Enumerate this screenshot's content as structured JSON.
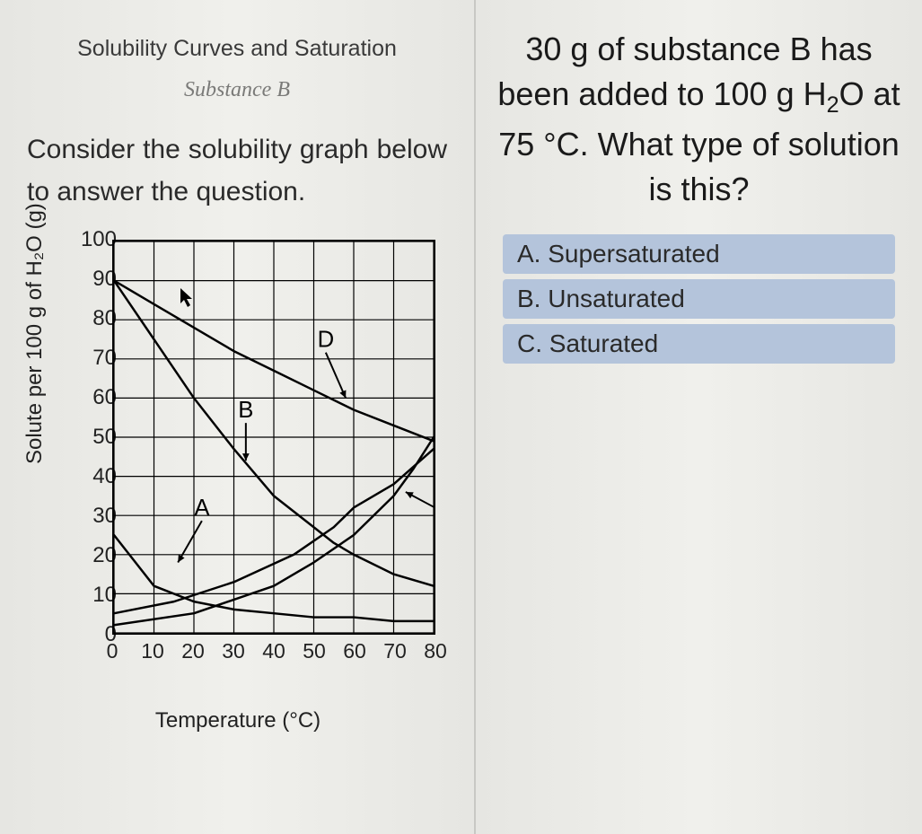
{
  "left": {
    "title": "Solubility Curves and Saturation",
    "subtitle": "Substance B",
    "body": "Consider the solubility graph below to answer the question."
  },
  "chart": {
    "ylabel": "Solute per 100 g of H₂O (g)",
    "xlabel": "Temperature (°C)",
    "xlim": [
      0,
      80
    ],
    "ylim": [
      0,
      100
    ],
    "ytick_step": 10,
    "xtick_step": 10,
    "yticks": [
      0,
      10,
      20,
      30,
      40,
      50,
      60,
      70,
      80,
      90,
      100
    ],
    "xticks": [
      0,
      10,
      20,
      30,
      40,
      50,
      60,
      70,
      80
    ],
    "grid_color": "#000000",
    "line_color": "#000000",
    "line_width": 2.5,
    "background_color": "#ededea",
    "curves": {
      "A": {
        "label": "A",
        "label_at": {
          "x": 22,
          "y": 30
        },
        "arrow_to": {
          "x": 16,
          "y": 18
        },
        "points": [
          [
            0,
            25
          ],
          [
            10,
            12
          ],
          [
            20,
            8
          ],
          [
            30,
            6
          ],
          [
            40,
            5
          ],
          [
            50,
            4
          ],
          [
            60,
            4
          ],
          [
            70,
            3
          ],
          [
            80,
            3
          ]
        ]
      },
      "B": {
        "label": "B",
        "label_at": {
          "x": 33,
          "y": 55
        },
        "arrow_to": {
          "x": 33,
          "y": 44
        },
        "points": [
          [
            0,
            90
          ],
          [
            10,
            75
          ],
          [
            20,
            60
          ],
          [
            30,
            47
          ],
          [
            40,
            35
          ],
          [
            50,
            27
          ],
          [
            55,
            23
          ],
          [
            60,
            20
          ],
          [
            70,
            15
          ],
          [
            80,
            12
          ]
        ]
      },
      "C": {
        "label": "",
        "points": [
          [
            0,
            5
          ],
          [
            15,
            8
          ],
          [
            30,
            13
          ],
          [
            45,
            20
          ],
          [
            55,
            27
          ],
          [
            60,
            32
          ],
          [
            70,
            38
          ],
          [
            80,
            47
          ]
        ]
      },
      "D": {
        "label": "D",
        "label_at": {
          "x": 53,
          "y": 73
        },
        "arrow_to": {
          "x": 58,
          "y": 60
        },
        "points": [
          [
            0,
            90
          ],
          [
            10,
            84
          ],
          [
            20,
            78
          ],
          [
            30,
            72
          ],
          [
            40,
            67
          ],
          [
            50,
            62
          ],
          [
            60,
            57
          ],
          [
            70,
            53
          ],
          [
            80,
            49
          ]
        ]
      },
      "E": {
        "label": "",
        "arrow_to": {
          "x": 73,
          "y": 36
        },
        "arrow_from": {
          "x": 84,
          "y": 30
        },
        "points": [
          [
            0,
            2
          ],
          [
            20,
            5
          ],
          [
            40,
            12
          ],
          [
            50,
            18
          ],
          [
            60,
            25
          ],
          [
            70,
            35
          ],
          [
            75,
            42
          ],
          [
            80,
            50
          ]
        ]
      }
    }
  },
  "right": {
    "question_html": "30 g of substance B has been added to 100 g H<span class='sub'>2</span>O at 75 °C. What type of solution is this?",
    "answers": [
      {
        "letter": "A",
        "text": "Supersaturated"
      },
      {
        "letter": "B",
        "text": "Unsaturated"
      },
      {
        "letter": "C",
        "text": "Saturated"
      }
    ],
    "answer_bg": "#b4c4db"
  }
}
